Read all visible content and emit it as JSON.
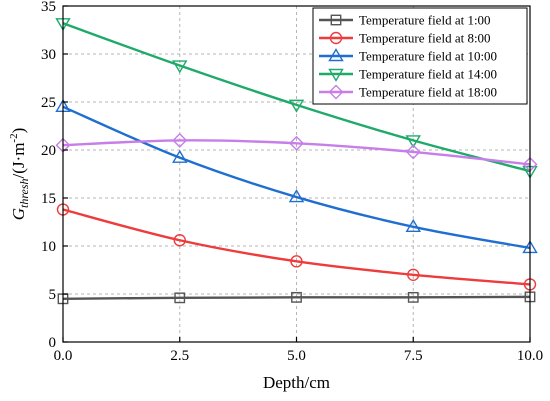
{
  "chart_data": {
    "type": "line",
    "xlabel": "Depth/cm",
    "ylabel": {
      "prefix": "G",
      "subscript": "thresh",
      "unit_open": "/(J·m",
      "unit_sup": "-2",
      "unit_close": ")"
    },
    "xlim": [
      0,
      10
    ],
    "ylim": [
      0,
      35
    ],
    "x_ticks": [
      0,
      2.5,
      5,
      7.5,
      10
    ],
    "x_tick_labels": [
      "0.0",
      "2.5",
      "5.0",
      "7.5",
      "10.0"
    ],
    "y_ticks": [
      0,
      5,
      10,
      15,
      20,
      25,
      30,
      35
    ],
    "y_tick_labels": [
      "0",
      "5",
      "10",
      "15",
      "20",
      "25",
      "30",
      "35"
    ],
    "grid": true,
    "legend_position": "top-right",
    "x": [
      0,
      2.5,
      5,
      7.5,
      10
    ],
    "series": [
      {
        "name": "Temperature field at 1:00",
        "color": "#555555",
        "marker": "square",
        "values": [
          4.5,
          4.6,
          4.65,
          4.65,
          4.7
        ]
      },
      {
        "name": "Temperature field at 8:00",
        "color": "#ee3b3b",
        "marker": "circle",
        "values": [
          13.8,
          10.6,
          8.4,
          7.0,
          6.0
        ]
      },
      {
        "name": "Temperature field at 10:00",
        "color": "#1f6fd0",
        "marker": "triangle-up",
        "values": [
          24.5,
          19.2,
          15.1,
          12.0,
          9.8
        ]
      },
      {
        "name": "Temperature field at 14:00",
        "color": "#1faa6a",
        "marker": "triangle-down",
        "values": [
          33.2,
          28.8,
          24.7,
          21.0,
          17.8
        ]
      },
      {
        "name": "Temperature field at 18:00",
        "color": "#c77ee8",
        "marker": "diamond",
        "values": [
          20.5,
          21.0,
          20.7,
          19.8,
          18.5
        ]
      }
    ]
  }
}
